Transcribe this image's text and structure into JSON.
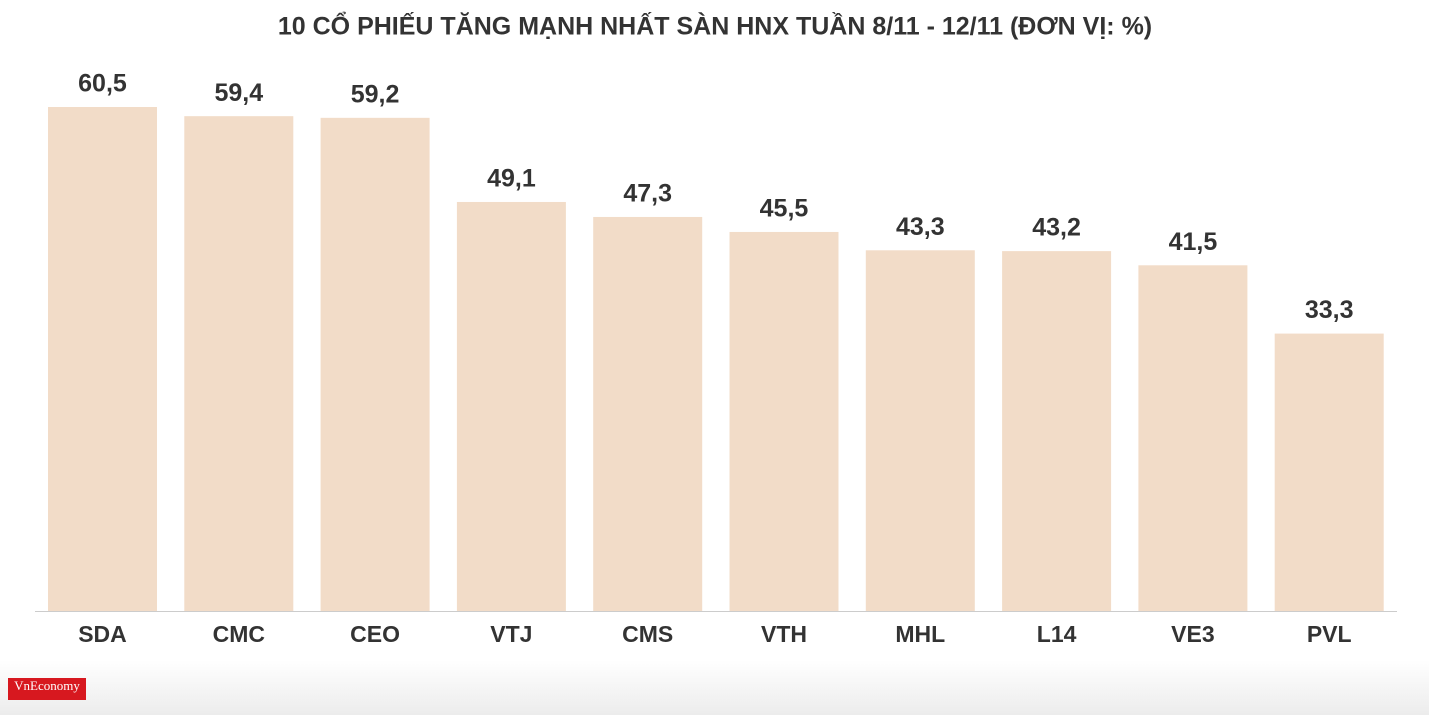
{
  "chart_data": {
    "type": "bar",
    "title": "10 CỔ PHIẾU TĂNG MẠNH NHẤT SÀN HNX TUẦN 8/11 - 12/11 (ĐƠN VỊ: %)",
    "categories": [
      "SDA",
      "CMC",
      "CEO",
      "VTJ",
      "CMS",
      "VTH",
      "MHL",
      "L14",
      "VE3",
      "PVL"
    ],
    "values": [
      60.5,
      59.4,
      59.2,
      49.1,
      47.3,
      45.5,
      43.3,
      43.2,
      41.5,
      33.3
    ],
    "value_labels": [
      "60,5",
      "59,4",
      "59,2",
      "49,1",
      "47,3",
      "45,5",
      "43,3",
      "43,2",
      "41,5",
      "33,3"
    ],
    "color": "#f2dcc8",
    "logo": "VnEconomy"
  }
}
